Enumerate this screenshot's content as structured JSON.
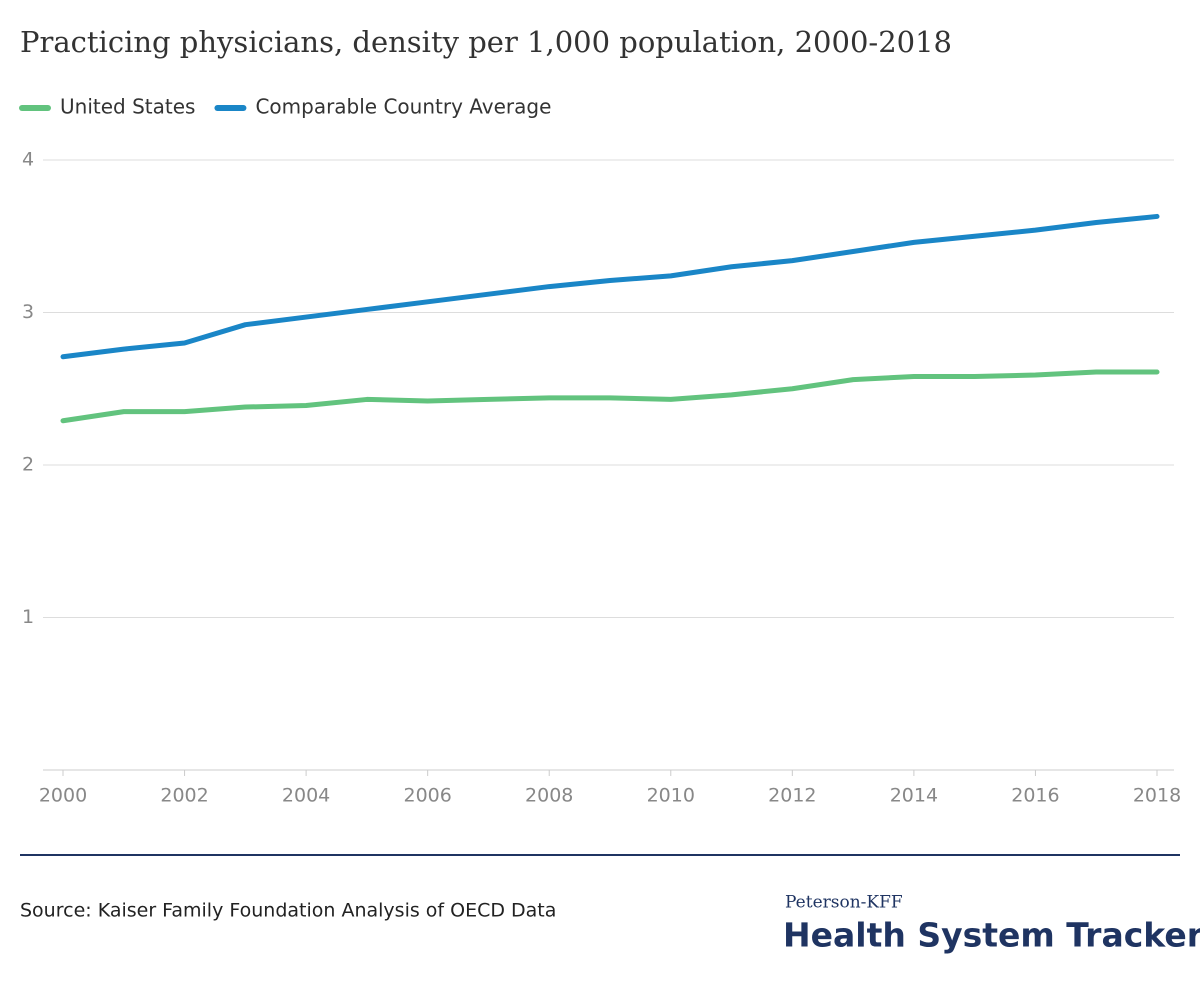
{
  "chart_data": {
    "type": "line",
    "title": "Practicing physicians, density per 1,000 population, 2000-2018",
    "x": [
      2000,
      2001,
      2002,
      2003,
      2004,
      2005,
      2006,
      2007,
      2008,
      2009,
      2010,
      2011,
      2012,
      2013,
      2014,
      2015,
      2016,
      2017,
      2018
    ],
    "series": [
      {
        "name": "United States",
        "color": "#62c37e",
        "values": [
          2.29,
          2.35,
          2.35,
          2.38,
          2.39,
          2.43,
          2.42,
          2.43,
          2.44,
          2.44,
          2.43,
          2.46,
          2.5,
          2.56,
          2.58,
          2.58,
          2.59,
          2.61,
          2.61
        ]
      },
      {
        "name": "Comparable Country Average",
        "color": "#1a86c7",
        "values": [
          2.71,
          2.76,
          2.8,
          2.92,
          2.97,
          3.02,
          3.07,
          3.12,
          3.17,
          3.21,
          3.24,
          3.3,
          3.34,
          3.4,
          3.46,
          3.5,
          3.54,
          3.59,
          3.63
        ]
      }
    ],
    "xlim": [
      2000,
      2018
    ],
    "xticks": [
      2000,
      2002,
      2004,
      2006,
      2008,
      2010,
      2012,
      2014,
      2016,
      2018
    ],
    "ylim": [
      0,
      4
    ],
    "yticks": [
      1,
      2,
      3,
      4
    ],
    "grid": true,
    "legend": "top-left",
    "source": "Source: Kaiser Family Foundation Analysis of OECD Data"
  },
  "branding": {
    "org": "Peterson-KFF",
    "name": "Health System Tracker"
  }
}
